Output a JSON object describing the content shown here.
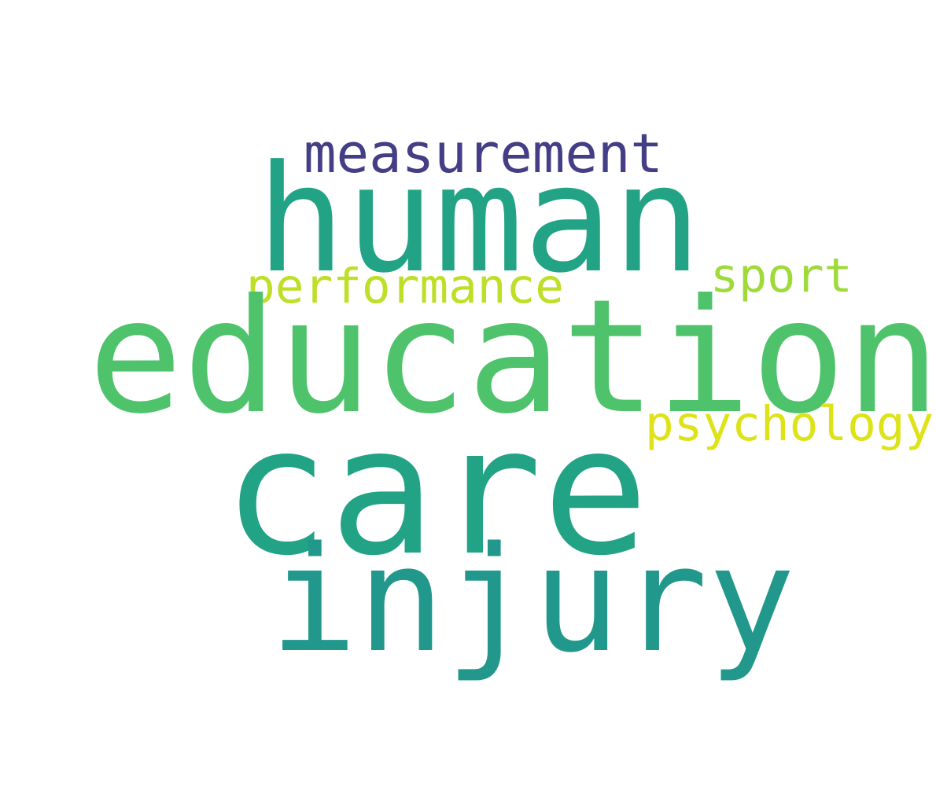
{
  "words": {
    "measurement": {
      "text": "measurement",
      "color": "#433e85"
    },
    "human": {
      "text": "human",
      "color": "#22a385"
    },
    "performance": {
      "text": "performance",
      "color": "#bddf26"
    },
    "sport": {
      "text": "sport",
      "color": "#9fda3a"
    },
    "education": {
      "text": "education",
      "color": "#4ec36b"
    },
    "psychology": {
      "text": "psychology",
      "color": "#dde318"
    },
    "care": {
      "text": "care",
      "color": "#22a386"
    },
    "injury": {
      "text": "injury",
      "color": "#21988b"
    }
  }
}
